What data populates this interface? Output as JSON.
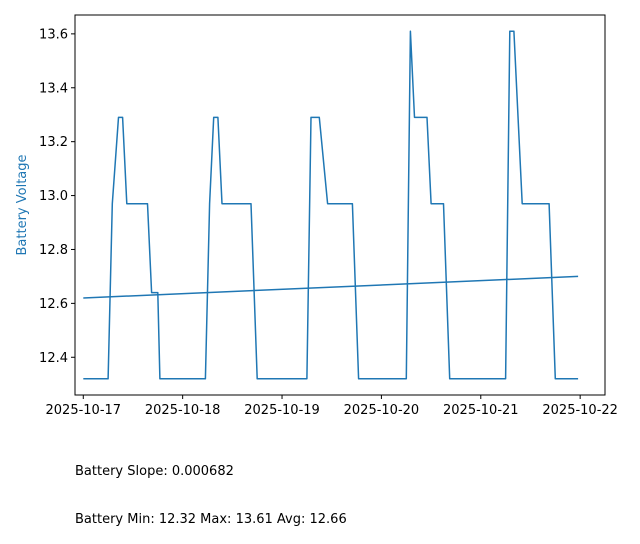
{
  "chart_data": {
    "type": "line",
    "title": "",
    "xlabel": "",
    "ylabel": "Battery Voltage",
    "ylabel_color": "#1f77b4",
    "line_color": "#1f77b4",
    "grid": false,
    "xlim": [
      "2025-10-16T22:00",
      "2025-10-22T06:00"
    ],
    "ylim": [
      12.26,
      13.67
    ],
    "x_ticks": [
      "2025-10-17",
      "2025-10-18",
      "2025-10-19",
      "2025-10-20",
      "2025-10-21",
      "2025-10-22"
    ],
    "y_ticks": [
      12.4,
      12.6,
      12.8,
      13.0,
      13.2,
      13.4,
      13.6
    ],
    "series": [
      {
        "x": [
          "2025-10-17T00:00",
          "2025-10-17T06:00",
          "2025-10-17T07:00",
          "2025-10-17T08:30",
          "2025-10-17T09:30",
          "2025-10-17T10:30",
          "2025-10-17T15:30",
          "2025-10-17T16:30",
          "2025-10-17T18:00",
          "2025-10-17T18:30",
          "2025-10-17T20:00",
          "2025-10-18T05:30",
          "2025-10-18T06:30",
          "2025-10-18T07:30",
          "2025-10-18T08:30",
          "2025-10-18T09:30",
          "2025-10-18T16:30",
          "2025-10-18T18:00",
          "2025-10-19T06:00",
          "2025-10-19T07:00",
          "2025-10-19T09:00",
          "2025-10-19T11:00",
          "2025-10-19T17:00",
          "2025-10-19T18:30",
          "2025-10-20T06:00",
          "2025-10-20T07:00",
          "2025-10-20T08:00",
          "2025-10-20T11:00",
          "2025-10-20T12:00",
          "2025-10-20T15:00",
          "2025-10-20T16:30",
          "2025-10-21T06:00",
          "2025-10-21T07:00",
          "2025-10-21T08:00",
          "2025-10-21T10:00",
          "2025-10-21T16:30",
          "2025-10-21T18:00",
          "2025-10-21T23:30"
        ],
        "values": [
          12.32,
          12.32,
          12.97,
          13.29,
          13.29,
          12.97,
          12.97,
          12.64,
          12.64,
          12.32,
          12.32,
          12.32,
          12.97,
          13.29,
          13.29,
          12.97,
          12.97,
          12.32,
          12.32,
          13.29,
          13.29,
          12.97,
          12.97,
          12.32,
          12.32,
          13.61,
          13.29,
          13.29,
          12.97,
          12.97,
          12.32,
          12.32,
          13.61,
          13.61,
          12.97,
          12.97,
          12.32,
          12.32
        ]
      },
      {
        "x": [
          "2025-10-17T00:00",
          "2025-10-21T23:30"
        ],
        "values": [
          12.62,
          12.7
        ]
      }
    ]
  },
  "stats": {
    "slope_line": "Battery Slope: 0.000682",
    "summary_line": "Battery Min: 12.32 Max: 13.61 Avg: 12.66"
  }
}
